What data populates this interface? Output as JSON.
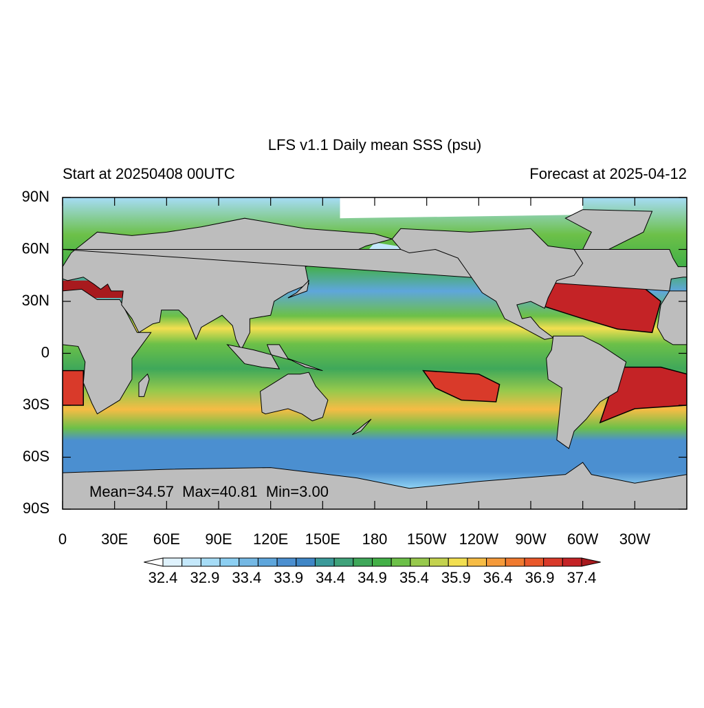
{
  "map": {
    "title": "LFS v1.1 Daily mean SSS (psu)",
    "left_subtitle": "Start at 20250408 00UTC",
    "right_subtitle": "Forecast at 2025-04-12",
    "annotation": "Mean=34.57  Max=40.81  Min=3.00",
    "xlim": [
      0,
      360
    ],
    "ylim": [
      -90,
      90
    ],
    "xticks": [
      0,
      {
        "value": 30,
        "label": "30E"
      },
      {
        "value": 60,
        "label": "60E"
      },
      {
        "value": 90,
        "label": "90E"
      },
      {
        "value": 120,
        "label": "120E"
      },
      {
        "value": 150,
        "label": "150E"
      },
      180,
      {
        "value": 210,
        "label": "150W"
      },
      {
        "value": 240,
        "label": "120W"
      },
      {
        "value": 270,
        "label": "90W"
      },
      {
        "value": 300,
        "label": "60W"
      },
      {
        "value": 330,
        "label": "30W"
      }
    ],
    "yticks": [
      {
        "value": 90,
        "label": "90N"
      },
      {
        "value": 60,
        "label": "60N"
      },
      {
        "value": 30,
        "label": "30N"
      },
      0,
      {
        "value": -30,
        "label": "30S"
      },
      {
        "value": -60,
        "label": "60S"
      },
      {
        "value": -90,
        "label": "90S"
      }
    ],
    "colorbar": {
      "levels": [
        32.4,
        32.9,
        33.4,
        33.9,
        34.4,
        34.9,
        35.4,
        35.9,
        36.4,
        36.9,
        37.4
      ],
      "colors": [
        "#ffffff",
        "#dff2fd",
        "#c4e8fb",
        "#a6dcf6",
        "#8ccff2",
        "#74b8e4",
        "#5ea6dc",
        "#4b8fd0",
        "#3f86c6",
        "#3b9a9a",
        "#3fa27a",
        "#3fa85a",
        "#43b047",
        "#6cc048",
        "#97c94c",
        "#c3d24e",
        "#f2df50",
        "#f6bc45",
        "#f59a3a",
        "#f07a2f",
        "#e9582a",
        "#d93a2a",
        "#c42326",
        "#a81a1e"
      ]
    }
  }
}
